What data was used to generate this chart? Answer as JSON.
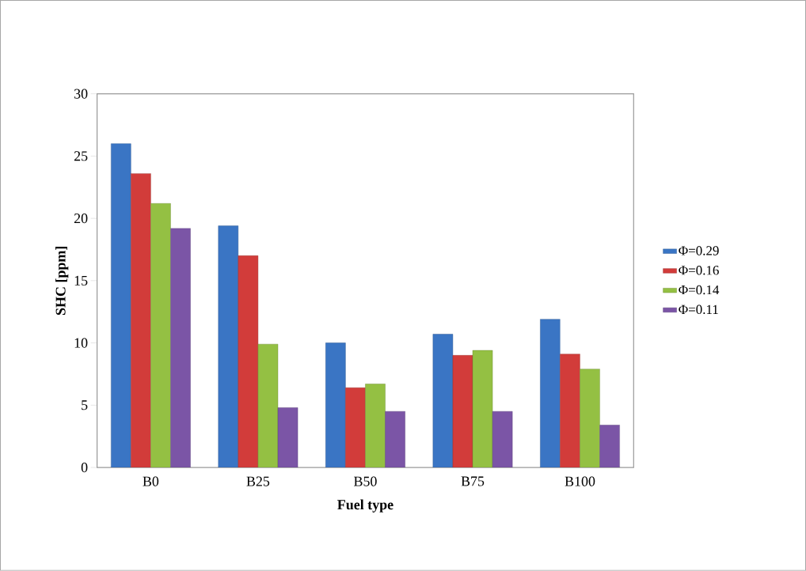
{
  "chart_data": {
    "type": "bar",
    "xlabel": "Fuel type",
    "ylabel": "SHC [ppm]",
    "categories": [
      "B0",
      "B25",
      "B50",
      "B75",
      "B100"
    ],
    "series": [
      {
        "name": "Φ=0.29",
        "color": "#3a75c4",
        "values": [
          26.0,
          19.4,
          10.0,
          10.7,
          11.9
        ]
      },
      {
        "name": "Φ=0.16",
        "color": "#d23c3a",
        "values": [
          23.6,
          17.0,
          6.4,
          9.0,
          9.1
        ]
      },
      {
        "name": "Φ=0.14",
        "color": "#94c043",
        "values": [
          21.2,
          9.9,
          6.7,
          9.4,
          7.9
        ]
      },
      {
        "name": "Φ=0.11",
        "color": "#7b55a6",
        "values": [
          19.2,
          4.8,
          4.5,
          4.5,
          3.4
        ]
      }
    ],
    "ylim": [
      0,
      30
    ],
    "yticks": [
      0,
      5,
      10,
      15,
      20,
      25,
      30
    ],
    "legend": "right"
  }
}
